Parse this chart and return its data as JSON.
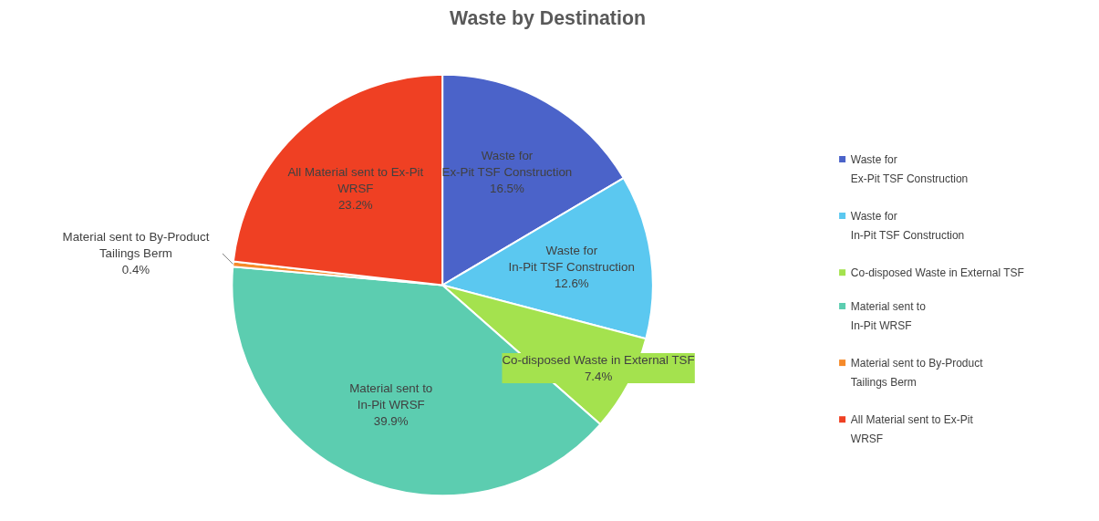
{
  "chart_data": {
    "type": "pie",
    "title": "Waste by Destination",
    "categories": [
      "Waste for\nEx-Pit TSF Construction",
      "Waste for\nIn-Pit TSF Construction",
      "Co-disposed Waste in External TSF",
      "Material sent to\nIn-Pit WRSF",
      "Material sent to By-Product\nTailings Berm",
      "All Material sent to Ex-Pit\nWRSF"
    ],
    "values": [
      16.5,
      12.6,
      7.4,
      39.9,
      0.4,
      23.2
    ],
    "colors": [
      "#4b63c9",
      "#5bc8f0",
      "#a4e24e",
      "#5ccdb0",
      "#f58a2a",
      "#ef4023"
    ],
    "value_labels": [
      "16.5%",
      "12.6%",
      "7.4%",
      "39.9%",
      "0.4%",
      "23.2%"
    ],
    "legend": "right"
  }
}
